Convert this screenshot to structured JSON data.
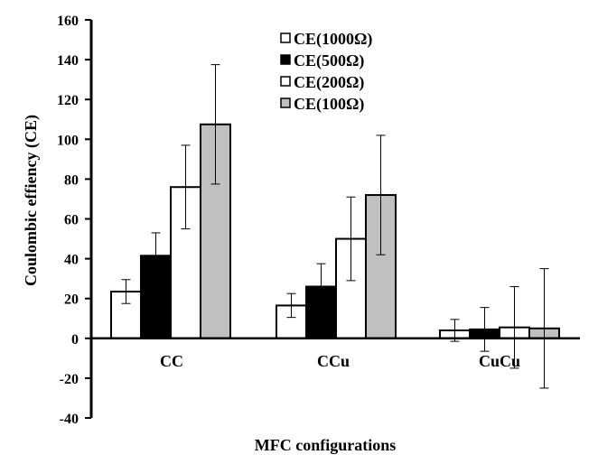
{
  "chart_data": {
    "type": "bar",
    "title": "",
    "xlabel": "MFC configurations",
    "ylabel": "Coulombic effiency (CE)",
    "ylim": [
      -40,
      160
    ],
    "yticks": [
      -40,
      -20,
      0,
      20,
      40,
      60,
      80,
      100,
      120,
      140,
      160
    ],
    "grid": false,
    "legend_position": "top-right",
    "categories": [
      "CC",
      "CCu",
      "CuCu"
    ],
    "series": [
      {
        "name": "CE(1000Ω)",
        "color": "#ffffff",
        "values": [
          23.5,
          16.5,
          4.0
        ],
        "errors": [
          6.0,
          6.0,
          5.5
        ]
      },
      {
        "name": "CE(500Ω)",
        "color": "#000000",
        "values": [
          41.5,
          26.0,
          4.5
        ],
        "errors": [
          11.5,
          11.5,
          11.0
        ]
      },
      {
        "name": "CE(200Ω)",
        "color": "#ffffff",
        "values": [
          76.0,
          50.0,
          5.5
        ],
        "errors": [
          21.0,
          21.0,
          20.5
        ]
      },
      {
        "name": "CE(100Ω)",
        "color": "#c0c0c0",
        "values": [
          107.5,
          72.0,
          5.0
        ],
        "errors": [
          30.0,
          30.0,
          30.0
        ]
      }
    ]
  }
}
